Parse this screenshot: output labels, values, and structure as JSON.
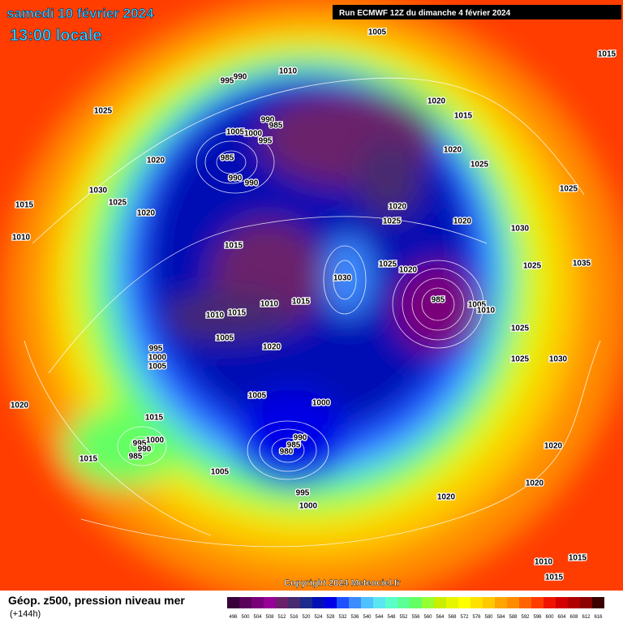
{
  "header": {
    "date": "samedi 10 février 2024",
    "time": "13:00 locale",
    "run": "Run ECMWF 12Z du dimanche 4 février 2024"
  },
  "copyright": "Copyright 2024 Meteociel.fr",
  "footer": {
    "title": "Géop. z500, pression niveau mer",
    "lead": "(+144h)"
  },
  "isobar_labels": [
    "1005",
    "1015",
    "1010",
    "990",
    "995",
    "1025",
    "990",
    "985",
    "1005",
    "1000",
    "995",
    "1020",
    "1015",
    "1020",
    "1025",
    "1020",
    "985",
    "990",
    "990",
    "1030",
    "1025",
    "1020",
    "1015",
    "1020",
    "1025",
    "1020",
    "1030",
    "1025",
    "1010",
    "1015",
    "1025",
    "1020",
    "1025",
    "1030",
    "1010",
    "1015",
    "1010",
    "1015",
    "985",
    "1005",
    "1010",
    "1025",
    "1005",
    "995",
    "1000",
    "1005",
    "1020",
    "1025",
    "1030",
    "1035",
    "1020",
    "1005",
    "1000",
    "1015",
    "990",
    "985",
    "980",
    "1000",
    "995",
    "990",
    "985",
    "1015",
    "1005",
    "995",
    "1000",
    "1020",
    "1020",
    "1020",
    "1015",
    "1010",
    "1015"
  ],
  "legend": {
    "labels": [
      "496",
      "500",
      "504",
      "508",
      "512",
      "516",
      "520",
      "524",
      "528",
      "532",
      "536",
      "540",
      "544",
      "548",
      "552",
      "556",
      "560",
      "564",
      "568",
      "572",
      "576",
      "580",
      "584",
      "588",
      "592",
      "596",
      "600",
      "604",
      "608",
      "612",
      "616"
    ],
    "colors": [
      "#3a003a",
      "#5a005a",
      "#7a007a",
      "#960096",
      "#6a206a",
      "#462a70",
      "#1c2a8c",
      "#0010b4",
      "#0000e6",
      "#1e50ff",
      "#3c8cff",
      "#50c0ff",
      "#5ae6f0",
      "#5affc8",
      "#5aff96",
      "#64ff64",
      "#96ff32",
      "#c8f000",
      "#e6f500",
      "#ffff00",
      "#ffe100",
      "#ffc800",
      "#ffa500",
      "#ff8c00",
      "#ff6400",
      "#ff3c00",
      "#f01400",
      "#d20000",
      "#af0000",
      "#8c0000",
      "#3c0000"
    ]
  }
}
